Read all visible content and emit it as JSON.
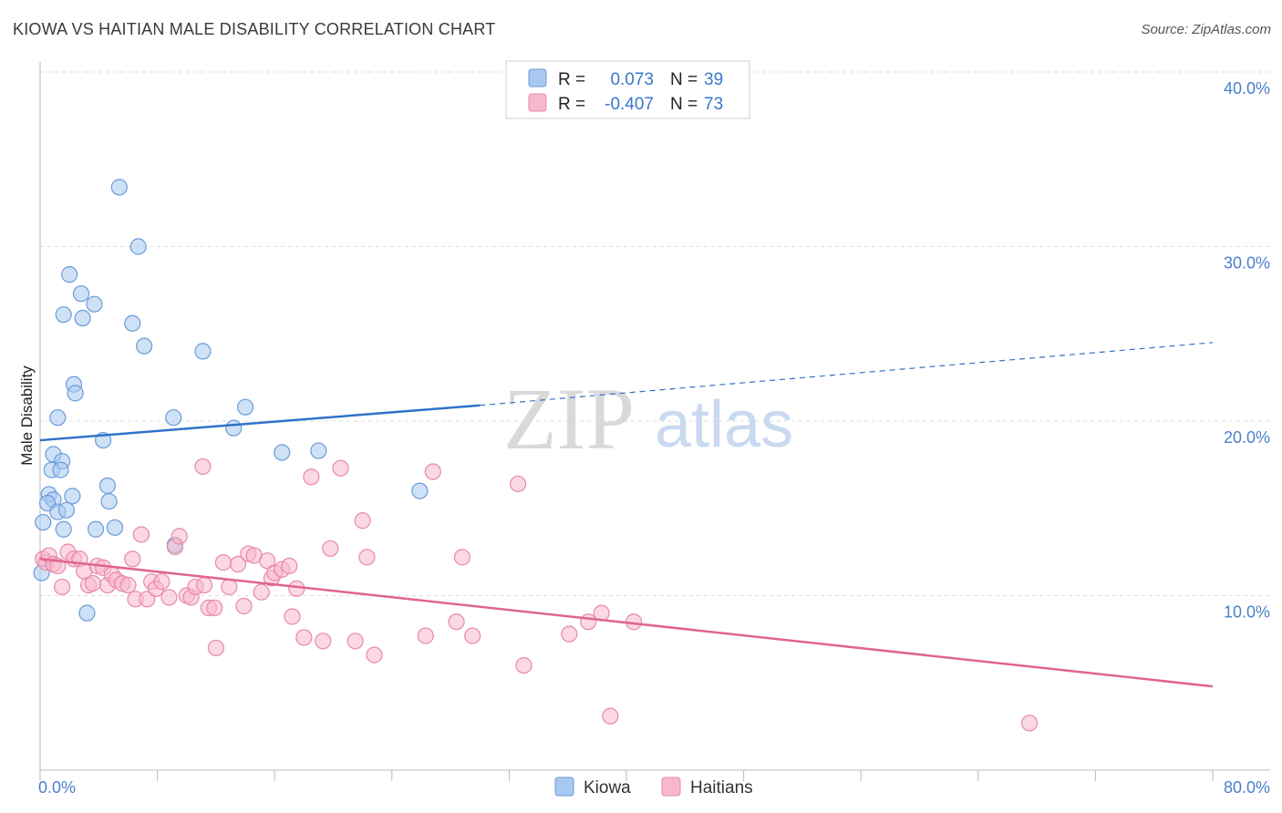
{
  "header": {
    "title": "KIOWA VS HAITIAN MALE DISABILITY CORRELATION CHART",
    "source": "Source: ZipAtlas.com"
  },
  "watermark": {
    "zip": "ZIP",
    "atlas": "atlas"
  },
  "colors": {
    "kiowa_fill": "#a8c8f0",
    "kiowa_stroke": "#6a9bd8",
    "kiowa_line": "#2f73c9",
    "haitian_fill": "#f7b8cb",
    "haitian_stroke": "#e889a8",
    "haitian_line": "#e0648f",
    "tick_text": "#4a7fcb",
    "grid": "#dddddd"
  },
  "chart_data": {
    "type": "scatter",
    "title": "KIOWA VS HAITIAN MALE DISABILITY CORRELATION CHART",
    "xlabel": "",
    "ylabel": "Male Disability",
    "xlim": [
      0,
      80
    ],
    "ylim": [
      0,
      40
    ],
    "x_tick_labels": [
      {
        "value": 0,
        "label": "0.0%"
      },
      {
        "value": 80,
        "label": "80.0%"
      }
    ],
    "y_tick_labels": [
      {
        "value": 10,
        "label": "10.0%"
      },
      {
        "value": 20,
        "label": "20.0%"
      },
      {
        "value": 30,
        "label": "30.0%"
      },
      {
        "value": 40,
        "label": "40.0%"
      }
    ],
    "grid": "horizontal dashed",
    "legend": {
      "position": "top-center",
      "entries": [
        {
          "series": "Kiowa",
          "r_label": "R =",
          "r_value": "0.073",
          "n_label": "N =",
          "n_value": "39"
        },
        {
          "series": "Haitians",
          "r_label": "R =",
          "r_value": "-0.407",
          "n_label": "N =",
          "n_value": "73"
        }
      ]
    },
    "bottom_legend": [
      "Kiowa",
      "Haitians"
    ],
    "series": [
      {
        "name": "Kiowa",
        "trend": {
          "x_start": 0,
          "y_start": 18.9,
          "x_solid_end": 30,
          "y_solid_end": 20.9,
          "x_end": 80,
          "y_end": 24.5
        },
        "points": [
          [
            5.4,
            33.4
          ],
          [
            6.7,
            30.0
          ],
          [
            2.0,
            28.4
          ],
          [
            2.8,
            27.3
          ],
          [
            3.7,
            26.7
          ],
          [
            1.6,
            26.1
          ],
          [
            2.9,
            25.9
          ],
          [
            6.3,
            25.6
          ],
          [
            7.1,
            24.3
          ],
          [
            11.1,
            24.0
          ],
          [
            2.3,
            22.1
          ],
          [
            2.4,
            21.6
          ],
          [
            1.2,
            20.2
          ],
          [
            9.1,
            20.2
          ],
          [
            14.0,
            20.8
          ],
          [
            13.2,
            19.6
          ],
          [
            4.3,
            18.9
          ],
          [
            16.5,
            18.2
          ],
          [
            19.0,
            18.3
          ],
          [
            0.9,
            18.1
          ],
          [
            1.5,
            17.7
          ],
          [
            0.8,
            17.2
          ],
          [
            1.4,
            17.2
          ],
          [
            4.6,
            16.3
          ],
          [
            25.9,
            16.0
          ],
          [
            0.6,
            15.8
          ],
          [
            2.2,
            15.7
          ],
          [
            0.9,
            15.5
          ],
          [
            0.5,
            15.3
          ],
          [
            4.7,
            15.4
          ],
          [
            1.2,
            14.8
          ],
          [
            1.8,
            14.9
          ],
          [
            0.2,
            14.2
          ],
          [
            1.6,
            13.8
          ],
          [
            3.8,
            13.8
          ],
          [
            5.1,
            13.9
          ],
          [
            9.2,
            12.9
          ],
          [
            0.1,
            11.3
          ],
          [
            3.2,
            9.0
          ]
        ]
      },
      {
        "name": "Haitians",
        "trend": {
          "x_start": 0,
          "y_start": 12.1,
          "x_end": 80,
          "y_end": 4.8
        },
        "points": [
          [
            0.2,
            12.1
          ],
          [
            0.4,
            11.9
          ],
          [
            0.6,
            12.3
          ],
          [
            0.9,
            11.8
          ],
          [
            1.2,
            11.7
          ],
          [
            1.5,
            10.5
          ],
          [
            1.9,
            12.5
          ],
          [
            2.3,
            12.1
          ],
          [
            2.7,
            12.1
          ],
          [
            3.0,
            11.4
          ],
          [
            3.3,
            10.6
          ],
          [
            3.6,
            10.7
          ],
          [
            3.9,
            11.7
          ],
          [
            4.3,
            11.6
          ],
          [
            4.6,
            10.6
          ],
          [
            4.9,
            11.2
          ],
          [
            5.2,
            10.9
          ],
          [
            5.6,
            10.7
          ],
          [
            6.0,
            10.6
          ],
          [
            6.3,
            12.1
          ],
          [
            6.5,
            9.8
          ],
          [
            6.9,
            13.5
          ],
          [
            7.3,
            9.8
          ],
          [
            7.6,
            10.8
          ],
          [
            7.9,
            10.4
          ],
          [
            8.3,
            10.8
          ],
          [
            8.8,
            9.9
          ],
          [
            9.2,
            12.8
          ],
          [
            9.5,
            13.4
          ],
          [
            10.0,
            10.0
          ],
          [
            10.3,
            9.9
          ],
          [
            10.6,
            10.5
          ],
          [
            11.1,
            17.4
          ],
          [
            11.2,
            10.6
          ],
          [
            11.5,
            9.3
          ],
          [
            11.9,
            9.3
          ],
          [
            12.0,
            7.0
          ],
          [
            12.5,
            11.9
          ],
          [
            12.9,
            10.5
          ],
          [
            13.5,
            11.8
          ],
          [
            13.9,
            9.4
          ],
          [
            14.2,
            12.4
          ],
          [
            14.6,
            12.3
          ],
          [
            15.1,
            10.2
          ],
          [
            15.5,
            12.0
          ],
          [
            15.8,
            11.0
          ],
          [
            16.0,
            11.3
          ],
          [
            16.5,
            11.5
          ],
          [
            17.0,
            11.7
          ],
          [
            17.2,
            8.8
          ],
          [
            17.5,
            10.4
          ],
          [
            18.0,
            7.6
          ],
          [
            18.5,
            16.8
          ],
          [
            19.3,
            7.4
          ],
          [
            19.8,
            12.7
          ],
          [
            20.5,
            17.3
          ],
          [
            21.5,
            7.4
          ],
          [
            22.0,
            14.3
          ],
          [
            22.3,
            12.2
          ],
          [
            22.8,
            6.6
          ],
          [
            26.3,
            7.7
          ],
          [
            26.8,
            17.1
          ],
          [
            28.4,
            8.5
          ],
          [
            28.8,
            12.2
          ],
          [
            29.5,
            7.7
          ],
          [
            32.6,
            16.4
          ],
          [
            33.0,
            6.0
          ],
          [
            36.1,
            7.8
          ],
          [
            37.4,
            8.5
          ],
          [
            38.3,
            9.0
          ],
          [
            38.9,
            3.1
          ],
          [
            40.5,
            8.5
          ],
          [
            67.5,
            2.7
          ]
        ]
      }
    ]
  }
}
